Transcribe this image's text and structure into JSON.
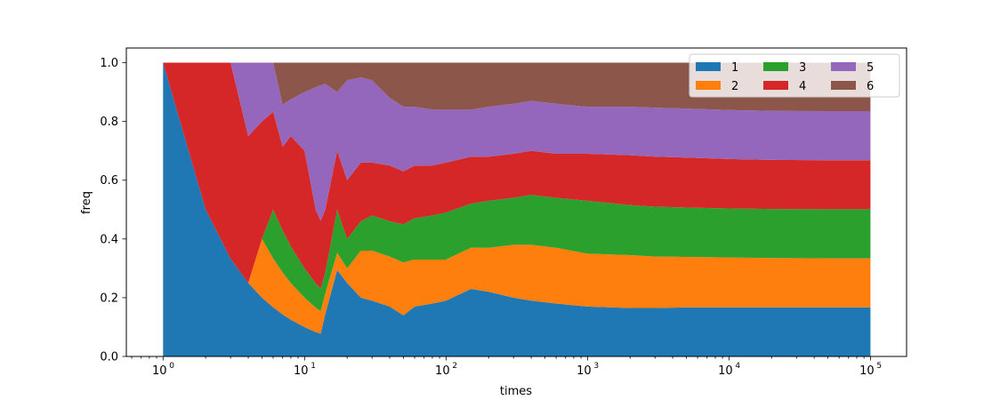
{
  "chart_data": {
    "type": "area",
    "stacked": true,
    "xscale": "log",
    "xlabel": "times",
    "ylabel": "freq",
    "xlim": [
      0.55,
      180000
    ],
    "ylim": [
      0,
      1.05
    ],
    "grid": false,
    "legend": {
      "placement": "top-right",
      "columns": 3
    },
    "x_ticks": [
      {
        "value": 1,
        "base": "10",
        "exp": "0"
      },
      {
        "value": 10,
        "base": "10",
        "exp": "1"
      },
      {
        "value": 100,
        "base": "10",
        "exp": "2"
      },
      {
        "value": 1000,
        "base": "10",
        "exp": "3"
      },
      {
        "value": 10000,
        "base": "10",
        "exp": "4"
      },
      {
        "value": 100000,
        "base": "10",
        "exp": "5"
      }
    ],
    "y_ticks": [
      {
        "value": 0.0,
        "label": "0.0"
      },
      {
        "value": 0.2,
        "label": "0.2"
      },
      {
        "value": 0.4,
        "label": "0.4"
      },
      {
        "value": 0.6,
        "label": "0.6"
      },
      {
        "value": 0.8,
        "label": "0.8"
      },
      {
        "value": 1.0,
        "label": "1.0"
      }
    ],
    "x": [
      1,
      2,
      3,
      4,
      5,
      6,
      7,
      8,
      10,
      12,
      13,
      14,
      17,
      20,
      25,
      30,
      40,
      50,
      60,
      80,
      100,
      150,
      200,
      300,
      400,
      600,
      1000,
      2000,
      3000,
      5000,
      10000,
      20000,
      50000,
      100000
    ],
    "series": [
      {
        "name": "1",
        "color": "#1f77b4",
        "values": [
          1.0,
          0.5,
          0.333,
          0.25,
          0.2,
          0.167,
          0.143,
          0.125,
          0.1,
          0.083,
          0.077,
          0.143,
          0.294,
          0.25,
          0.2,
          0.19,
          0.17,
          0.14,
          0.17,
          0.18,
          0.19,
          0.23,
          0.22,
          0.2,
          0.19,
          0.18,
          0.17,
          0.165,
          0.165,
          0.167,
          0.167,
          0.167,
          0.167,
          0.167
        ]
      },
      {
        "name": "2",
        "color": "#ff7f0e",
        "values": [
          0.0,
          0.0,
          0.0,
          0.0,
          0.2,
          0.167,
          0.143,
          0.125,
          0.1,
          0.083,
          0.077,
          0.071,
          0.059,
          0.05,
          0.16,
          0.17,
          0.17,
          0.18,
          0.16,
          0.15,
          0.14,
          0.14,
          0.15,
          0.18,
          0.19,
          0.19,
          0.18,
          0.18,
          0.175,
          0.172,
          0.17,
          0.168,
          0.167,
          0.167
        ]
      },
      {
        "name": "3",
        "color": "#2ca02c",
        "values": [
          0.0,
          0.0,
          0.0,
          0.0,
          0.0,
          0.166,
          0.143,
          0.125,
          0.1,
          0.083,
          0.077,
          0.071,
          0.147,
          0.1,
          0.1,
          0.12,
          0.12,
          0.13,
          0.14,
          0.15,
          0.16,
          0.15,
          0.16,
          0.16,
          0.17,
          0.17,
          0.18,
          0.17,
          0.17,
          0.168,
          0.167,
          0.167,
          0.167,
          0.167
        ]
      },
      {
        "name": "4",
        "color": "#d62728",
        "values": [
          0.0,
          0.5,
          0.667,
          0.5,
          0.4,
          0.333,
          0.285,
          0.375,
          0.4,
          0.25,
          0.231,
          0.214,
          0.2,
          0.2,
          0.2,
          0.18,
          0.19,
          0.18,
          0.18,
          0.17,
          0.17,
          0.16,
          0.15,
          0.15,
          0.15,
          0.15,
          0.16,
          0.17,
          0.17,
          0.17,
          0.168,
          0.167,
          0.167,
          0.167
        ]
      },
      {
        "name": "5",
        "color": "#9467bd",
        "values": [
          0.0,
          0.0,
          0.0,
          0.25,
          0.2,
          0.167,
          0.143,
          0.125,
          0.2,
          0.417,
          0.461,
          0.429,
          0.2,
          0.34,
          0.29,
          0.28,
          0.23,
          0.22,
          0.2,
          0.19,
          0.18,
          0.16,
          0.17,
          0.17,
          0.17,
          0.17,
          0.16,
          0.165,
          0.167,
          0.167,
          0.167,
          0.167,
          0.167,
          0.167
        ]
      },
      {
        "name": "6",
        "color": "#8c564b",
        "values": [
          0.0,
          0.0,
          0.0,
          0.0,
          0.0,
          0.0,
          0.143,
          0.125,
          0.1,
          0.084,
          0.077,
          0.072,
          0.1,
          0.06,
          0.05,
          0.06,
          0.12,
          0.15,
          0.15,
          0.16,
          0.16,
          0.16,
          0.15,
          0.14,
          0.13,
          0.14,
          0.15,
          0.15,
          0.153,
          0.156,
          0.161,
          0.164,
          0.165,
          0.165
        ]
      }
    ]
  }
}
